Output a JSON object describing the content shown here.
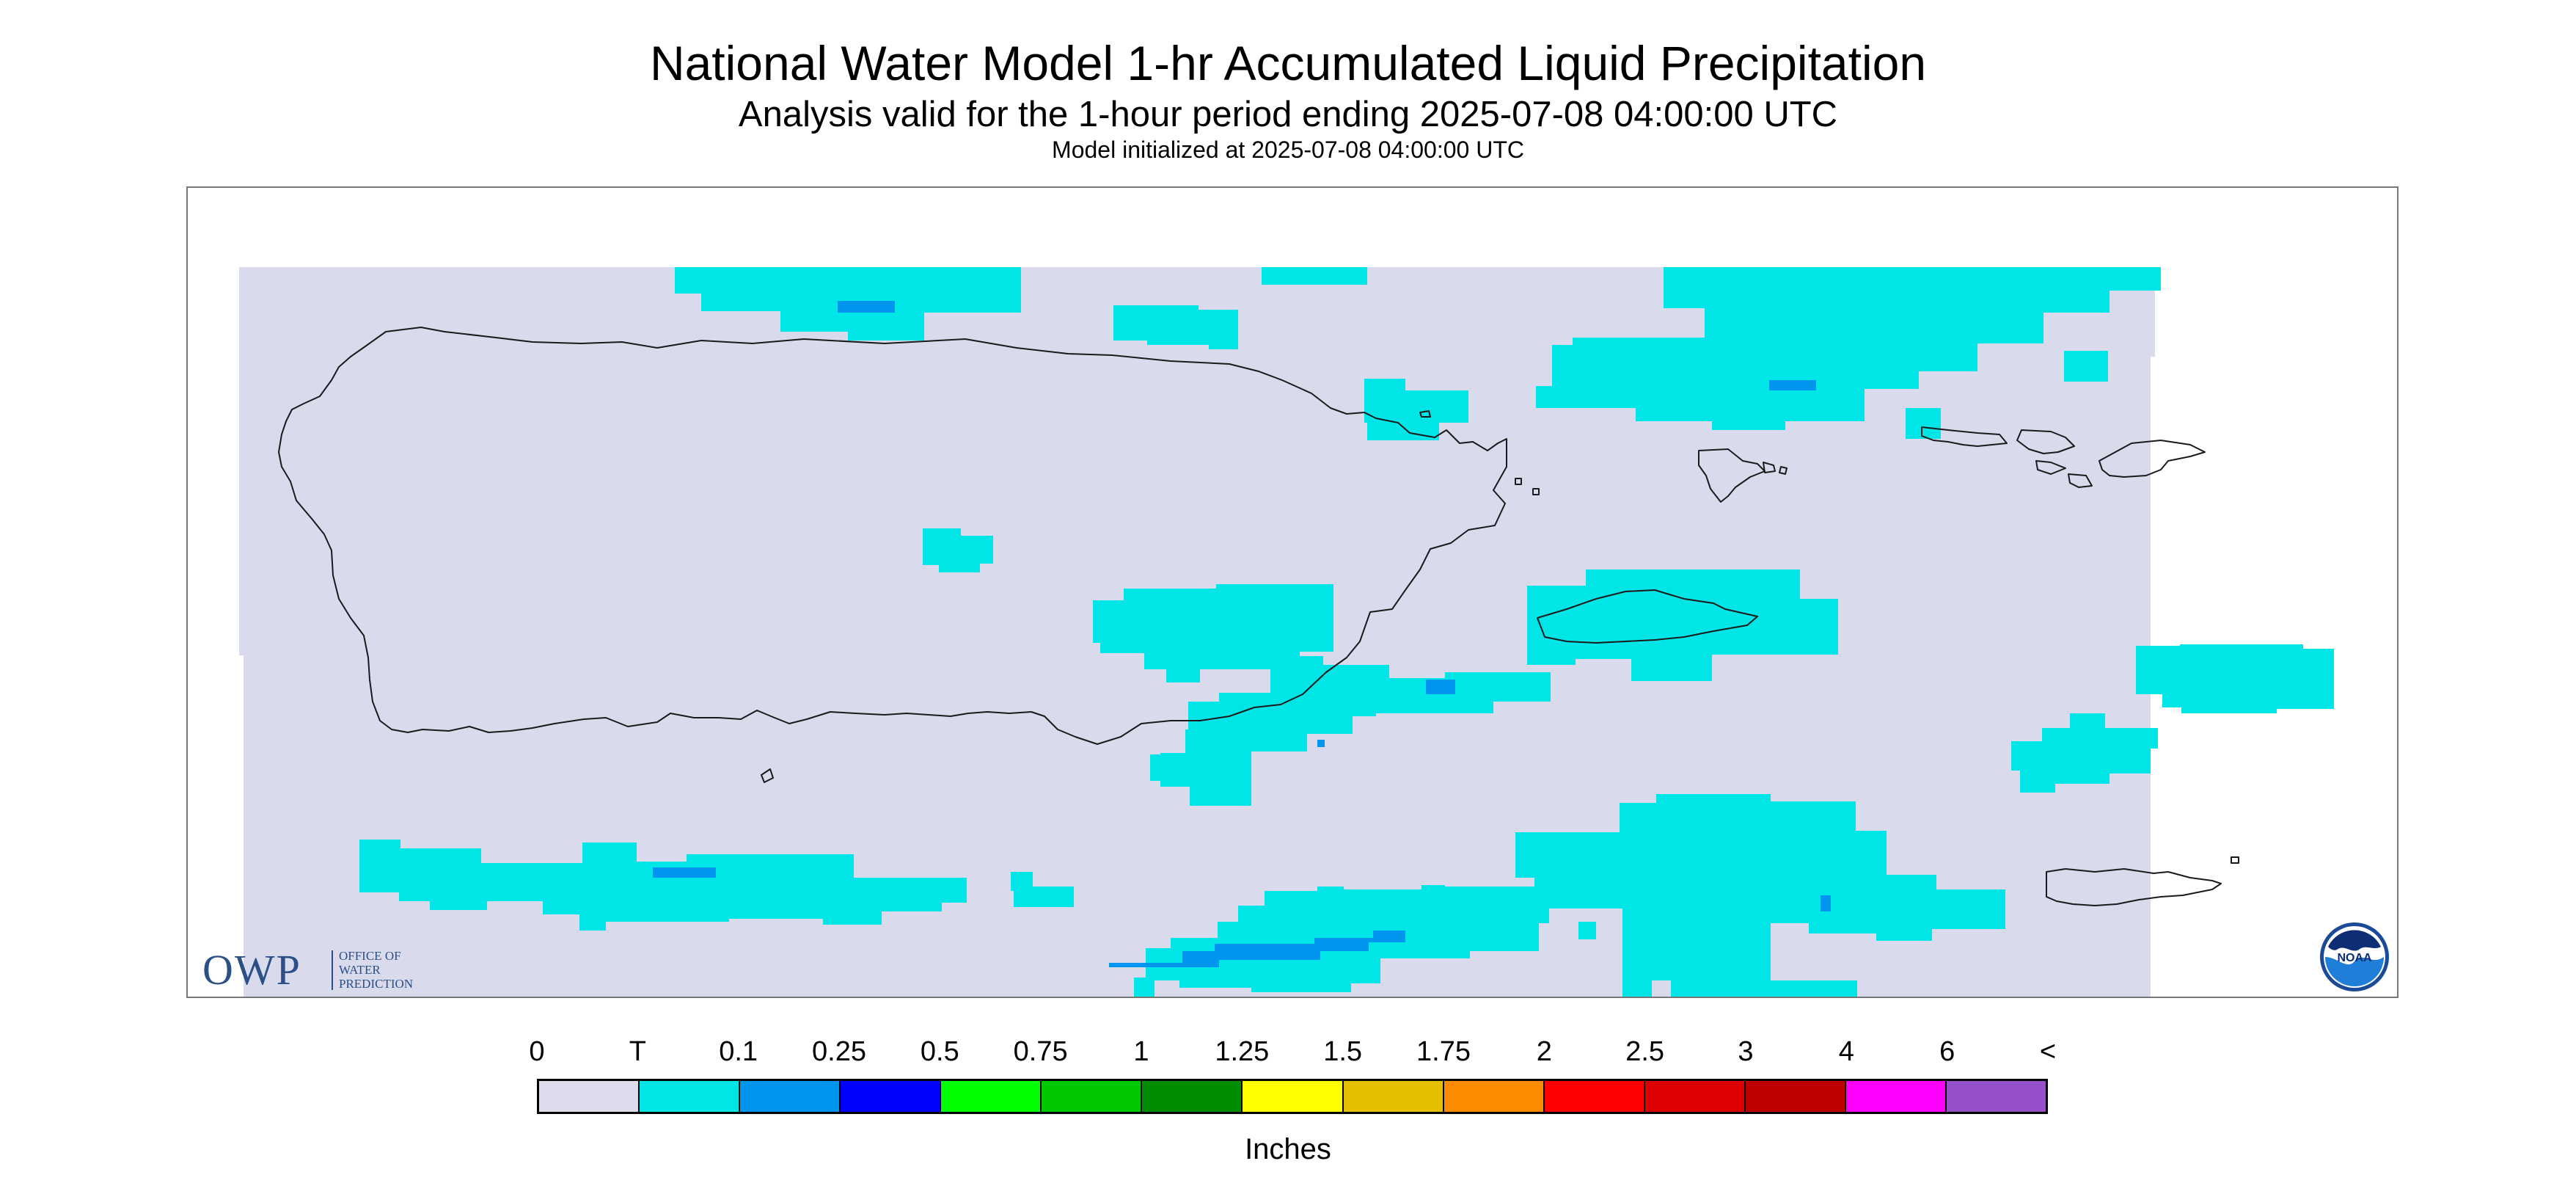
{
  "title": "National Water Model 1-hr Accumulated Liquid Precipitation",
  "subtitle": "Analysis valid for the 1-hour period ending 2025-07-08 04:00:00 UTC",
  "init_line": "Model initialized at 2025-07-08 04:00:00 UTC",
  "map": {
    "background_color": "#d9daec",
    "coast_color": "#1a1a1a"
  },
  "owp_logo": {
    "letters": "OWP",
    "name_lines": [
      "OFFICE OF",
      "WATER",
      "PREDICTION"
    ],
    "color": "#2b4f86"
  },
  "noaa_logo": {
    "text": "NOAA",
    "icon": "noaa-seal-icon"
  },
  "legend": {
    "units": "Inches",
    "ticks": [
      "0",
      "T",
      "0.1",
      "0.25",
      "0.5",
      "0.75",
      "1",
      "1.25",
      "1.5",
      "1.75",
      "2",
      "2.5",
      "3",
      "4",
      "6",
      "<"
    ],
    "colors": [
      "#dcdcec",
      "#00e5e5",
      "#0096f0",
      "#0000ff",
      "#00ff00",
      "#00c800",
      "#008c00",
      "#ffff00",
      "#e6be00",
      "#ff8c00",
      "#ff0000",
      "#dc0000",
      "#be0000",
      "#ff00ff",
      "#9650c8"
    ]
  }
}
